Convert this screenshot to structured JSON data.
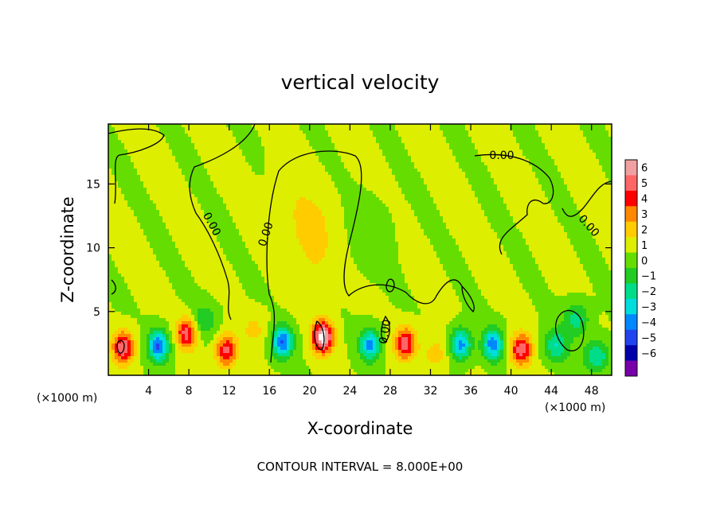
{
  "chart_data": {
    "type": "heatmap",
    "title": "vertical velocity",
    "xlabel": "X-coordinate",
    "ylabel": "Z-coordinate",
    "x_unit_note": "(×1000 m)",
    "x_ticks": [
      4,
      8,
      12,
      16,
      20,
      24,
      28,
      32,
      36,
      40,
      44,
      48
    ],
    "y_ticks": [
      5,
      10,
      15
    ],
    "xlim": [
      0,
      50
    ],
    "ylim": [
      0,
      19.7
    ],
    "colorbar_ticks": [
      6,
      5,
      4,
      3,
      2,
      1,
      0,
      -1,
      -2,
      -3,
      -4,
      -5,
      -6
    ],
    "colorbar_colors": [
      "#f0a0a0",
      "#ff6666",
      "#ff0000",
      "#ff8800",
      "#ffcc00",
      "#ddee00",
      "#66dd00",
      "#22cc22",
      "#00dd88",
      "#00dddd",
      "#0088ff",
      "#2244ee",
      "#0000aa",
      "#7700aa"
    ],
    "contour_label": "0.00",
    "footer": "CONTOUR INTERVAL = 8.000E+00",
    "features": [
      {
        "x": 20,
        "z": 11.5,
        "w": 1.3
      },
      {
        "x": 21,
        "z": 8.5,
        "w": 0.7
      },
      {
        "x": 18,
        "z": 14,
        "w": 0.6
      },
      {
        "x": 26,
        "z": 11,
        "w": -0.7
      },
      {
        "x": 1.5,
        "z": 2.2,
        "w": 4.9
      },
      {
        "x": 5,
        "z": 2.3,
        "w": -5.2
      },
      {
        "x": 7.8,
        "z": 3.3,
        "w": 4.5
      },
      {
        "x": 11.7,
        "z": 1.9,
        "w": 4.3
      },
      {
        "x": 17.3,
        "z": 2.6,
        "w": -5
      },
      {
        "x": 21.3,
        "z": 3.0,
        "w": 6.5
      },
      {
        "x": 26,
        "z": 2.4,
        "w": -4.4
      },
      {
        "x": 29.5,
        "z": 2.5,
        "w": 4.5
      },
      {
        "x": 35,
        "z": 2.4,
        "w": -4.6
      },
      {
        "x": 38.2,
        "z": 2.4,
        "w": -4.7
      },
      {
        "x": 41,
        "z": 2.0,
        "w": 4.6
      },
      {
        "x": 44.5,
        "z": 2.3,
        "w": -3
      },
      {
        "x": 48.5,
        "z": 1.5,
        "w": -3
      },
      {
        "x": 9.5,
        "z": 4.3,
        "w": -2
      },
      {
        "x": 14.5,
        "z": 3.6,
        "w": 1.2
      },
      {
        "x": 32.5,
        "z": 1.7,
        "w": 1.5
      },
      {
        "x": 46.5,
        "z": 4.4,
        "w": -2.5
      }
    ]
  }
}
